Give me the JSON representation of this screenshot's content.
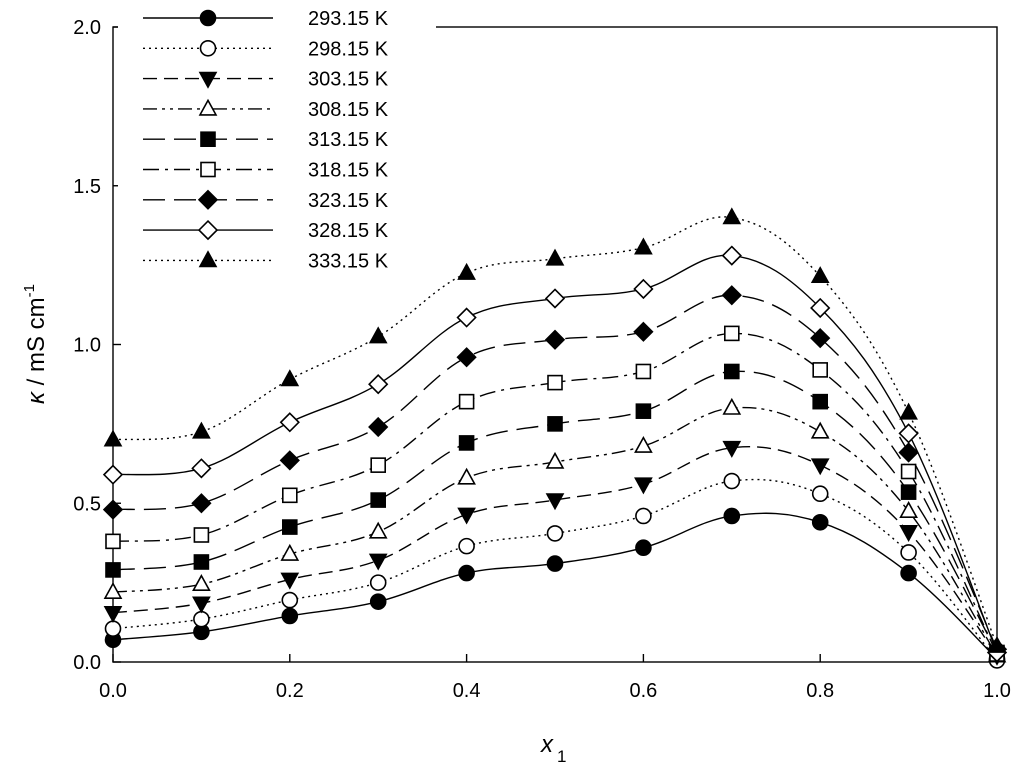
{
  "chart_data": {
    "type": "line",
    "xlabel": "x",
    "xlabel_sub": "1",
    "ylabel_kappa": "κ",
    "ylabel_main": " / mS cm",
    "ylabel_sup": "-1",
    "xlim": [
      0.0,
      1.0
    ],
    "ylim": [
      0.0,
      2.0
    ],
    "x_ticks": [
      "0.0",
      "0.2",
      "0.4",
      "0.6",
      "0.8",
      "1.0"
    ],
    "y_ticks": [
      "0.0",
      "0.5",
      "1.0",
      "1.5",
      "2.0"
    ],
    "grid": false,
    "legend_position": "top-left",
    "x": [
      0.0,
      0.1,
      0.2,
      0.3,
      0.4,
      0.5,
      0.6,
      0.7,
      0.8,
      0.9,
      1.0
    ],
    "series": [
      {
        "name": "293.15 K",
        "marker": "circle",
        "fill": "filled",
        "dash": "solid",
        "values": [
          0.07,
          0.095,
          0.145,
          0.19,
          0.28,
          0.31,
          0.36,
          0.46,
          0.44,
          0.28,
          0.01
        ]
      },
      {
        "name": "298.15 K",
        "marker": "circle",
        "fill": "open",
        "dash": "dotted",
        "values": [
          0.105,
          0.135,
          0.195,
          0.25,
          0.365,
          0.405,
          0.46,
          0.57,
          0.53,
          0.345,
          0.005
        ]
      },
      {
        "name": "303.15 K",
        "marker": "triangle-down",
        "fill": "filled",
        "dash": "dashed",
        "values": [
          0.155,
          0.185,
          0.26,
          0.32,
          0.465,
          0.51,
          0.56,
          0.675,
          0.62,
          0.41,
          0.02
        ]
      },
      {
        "name": "308.15 K",
        "marker": "triangle-up",
        "fill": "open",
        "dash": "dash-dot-dot",
        "values": [
          0.22,
          0.245,
          0.34,
          0.41,
          0.58,
          0.63,
          0.68,
          0.8,
          0.725,
          0.475,
          0.02
        ]
      },
      {
        "name": "313.15 K",
        "marker": "square",
        "fill": "filled",
        "dash": "long-dash",
        "values": [
          0.29,
          0.315,
          0.425,
          0.51,
          0.69,
          0.75,
          0.79,
          0.915,
          0.82,
          0.535,
          0.03
        ]
      },
      {
        "name": "318.15 K",
        "marker": "square",
        "fill": "open",
        "dash": "dash-dot",
        "values": [
          0.38,
          0.4,
          0.525,
          0.62,
          0.82,
          0.88,
          0.915,
          1.035,
          0.92,
          0.6,
          0.025
        ]
      },
      {
        "name": "323.15 K",
        "marker": "diamond",
        "fill": "filled",
        "dash": "long-dash",
        "values": [
          0.48,
          0.5,
          0.635,
          0.74,
          0.96,
          1.015,
          1.04,
          1.155,
          1.02,
          0.66,
          0.04
        ]
      },
      {
        "name": "328.15 K",
        "marker": "diamond",
        "fill": "open",
        "dash": "solid",
        "values": [
          0.59,
          0.61,
          0.755,
          0.875,
          1.085,
          1.145,
          1.175,
          1.28,
          1.115,
          0.72,
          0.03
        ]
      },
      {
        "name": "333.15 K",
        "marker": "triangle-up",
        "fill": "filled",
        "dash": "dotted",
        "values": [
          0.7,
          0.725,
          0.89,
          1.025,
          1.225,
          1.27,
          1.305,
          1.4,
          1.215,
          0.785,
          0.05
        ]
      }
    ],
    "colors": {
      "ink": "#000000",
      "background": "#ffffff"
    }
  }
}
